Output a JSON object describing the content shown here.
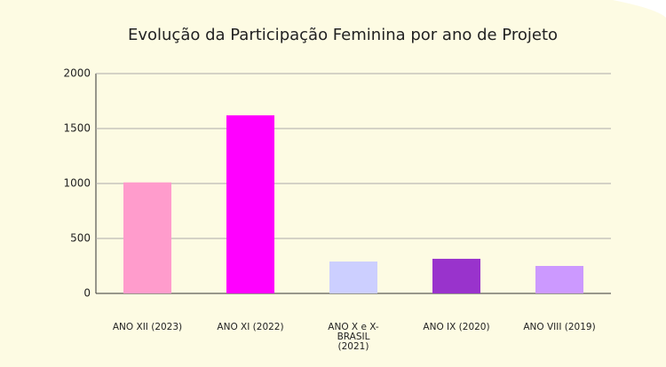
{
  "chart_data": {
    "type": "bar",
    "title": "Evolução da Participação Feminina por ano de Projeto",
    "categories": [
      "ANO XII (2023)",
      "ANO XI (2022)",
      "ANO X e X-BRASIL (2021)",
      "ANO IX (2020)",
      "ANO VIII (2019)"
    ],
    "values": [
      1010,
      1620,
      290,
      315,
      250
    ],
    "colors": [
      "#ff9ccc",
      "#ff00ff",
      "#cccfff",
      "#9933cc",
      "#cc99ff"
    ],
    "ylim": [
      0,
      2000
    ],
    "yticks": [
      0,
      500,
      1000,
      1500,
      2000
    ],
    "grid": true
  }
}
